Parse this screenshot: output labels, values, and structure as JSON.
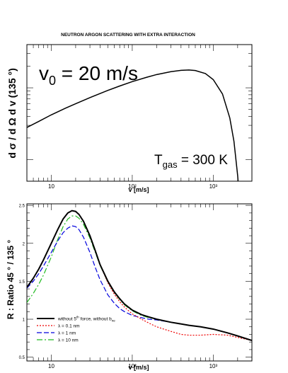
{
  "title": "NEUTRON ARGON SCATTERING WITH EXTRA INTERACTION",
  "chart_data": [
    {
      "type": "line",
      "ylabel": "d σ / d Ω d v (135 °)",
      "xlabel": "v [m/s]",
      "x_scale": "log",
      "y_scale": "log",
      "xlim": [
        5,
        3000
      ],
      "x_tick_labels": {
        "10": "10",
        "100": "10²",
        "1000": "10³"
      },
      "annotations": {
        "v0": {
          "main": "v",
          "sub": "0",
          "rest": " = 20 m/s"
        },
        "tgas": {
          "main": "T",
          "sub": "gas",
          "rest": " = 300 K"
        }
      },
      "series": [
        {
          "color": "#000000",
          "x": [
            5,
            7,
            10,
            15,
            20,
            30,
            50,
            70,
            100,
            150,
            200,
            300,
            400,
            500,
            600,
            800,
            1000,
            1300,
            1600,
            1800,
            2000,
            2100
          ],
          "y": [
            0.028,
            0.034,
            0.042,
            0.052,
            0.06,
            0.073,
            0.092,
            0.106,
            0.122,
            0.14,
            0.153,
            0.168,
            0.175,
            0.177,
            0.174,
            0.158,
            0.13,
            0.082,
            0.038,
            0.018,
            0.006,
            0.003
          ]
        }
      ]
    },
    {
      "type": "line",
      "ylabel": "R : Ratio 45 ° / 135 °",
      "xlabel": "v [m/s]",
      "x_scale": "log",
      "xlim": [
        5,
        3000
      ],
      "ylim": [
        0.45,
        2.52
      ],
      "y_ticks": [
        0.5,
        1,
        1.5,
        2,
        2.5
      ],
      "y_tick_labels": [
        "0.5",
        "1",
        "1.5",
        "2",
        "2.5"
      ],
      "x_tick_labels": {
        "10": "10",
        "100": "10²",
        "1000": "10³"
      },
      "legend_position": "bottom-left",
      "series": [
        {
          "name": "without 5th force, without b_ne",
          "legend": {
            "a": "without 5",
            "sup": "th",
            "b": " force, without b",
            "sub": "ne"
          },
          "color": "#000000",
          "dash": "solid",
          "x": [
            5,
            6,
            7,
            8,
            10,
            12,
            14,
            16,
            18,
            20,
            22,
            25,
            30,
            35,
            40,
            50,
            60,
            70,
            80,
            100,
            130,
            160,
            200,
            300,
            500,
            700,
            1000,
            1500,
            2000,
            3000
          ],
          "y": [
            1.42,
            1.54,
            1.66,
            1.78,
            2.0,
            2.18,
            2.32,
            2.4,
            2.43,
            2.42,
            2.38,
            2.29,
            2.1,
            1.9,
            1.72,
            1.5,
            1.36,
            1.27,
            1.2,
            1.12,
            1.06,
            1.03,
            1.0,
            0.96,
            0.92,
            0.9,
            0.87,
            0.82,
            0.78,
            0.72
          ]
        },
        {
          "name": "λ = 0.1 nm",
          "legend": {
            "a": "λ = 0.1 nm"
          },
          "color": "#ee0000",
          "dash": "2,2",
          "x": [
            5,
            6,
            7,
            8,
            10,
            12,
            14,
            16,
            18,
            20,
            22,
            25,
            30,
            35,
            40,
            50,
            60,
            70,
            80,
            100,
            130,
            160,
            200,
            300,
            400,
            500,
            700,
            1000,
            1500,
            2000,
            3000
          ],
          "y": [
            1.42,
            1.54,
            1.66,
            1.78,
            2.0,
            2.18,
            2.32,
            2.4,
            2.43,
            2.42,
            2.38,
            2.29,
            2.1,
            1.9,
            1.72,
            1.48,
            1.33,
            1.23,
            1.16,
            1.07,
            1.0,
            0.95,
            0.9,
            0.84,
            0.8,
            0.79,
            0.79,
            0.8,
            0.79,
            0.76,
            0.72
          ]
        },
        {
          "name": "λ = 1 nm",
          "legend": {
            "a": "λ = 1 nm"
          },
          "color": "#0000dd",
          "dash": "7,3",
          "x": [
            5,
            6,
            7,
            8,
            10,
            12,
            14,
            16,
            18,
            20,
            22,
            25,
            30,
            35,
            40,
            50,
            60,
            70,
            80,
            100,
            130,
            160,
            200,
            300,
            500,
            700,
            1000,
            1500,
            2000,
            3000
          ],
          "y": [
            1.41,
            1.5,
            1.6,
            1.7,
            1.88,
            2.03,
            2.14,
            2.2,
            2.23,
            2.22,
            2.18,
            2.08,
            1.88,
            1.68,
            1.52,
            1.32,
            1.21,
            1.14,
            1.1,
            1.05,
            1.02,
            1.0,
            0.99,
            0.96,
            0.92,
            0.9,
            0.87,
            0.82,
            0.78,
            0.72
          ]
        },
        {
          "name": "λ = 10 nm",
          "legend": {
            "a": "λ = 10 nm"
          },
          "color": "#22bb22",
          "dash": "8,3,2,3",
          "x": [
            5,
            6,
            7,
            8,
            10,
            12,
            14,
            16,
            18,
            20,
            22,
            25,
            30,
            35,
            40,
            50,
            60,
            70,
            80,
            100,
            130,
            160,
            200,
            300,
            500,
            700,
            1000,
            1500,
            2000,
            3000
          ],
          "y": [
            1.22,
            1.34,
            1.46,
            1.58,
            1.82,
            2.05,
            2.22,
            2.32,
            2.36,
            2.36,
            2.33,
            2.25,
            2.07,
            1.88,
            1.71,
            1.49,
            1.35,
            1.26,
            1.19,
            1.11,
            1.05,
            1.02,
            1.0,
            0.96,
            0.92,
            0.9,
            0.87,
            0.82,
            0.78,
            0.72
          ]
        }
      ]
    }
  ]
}
